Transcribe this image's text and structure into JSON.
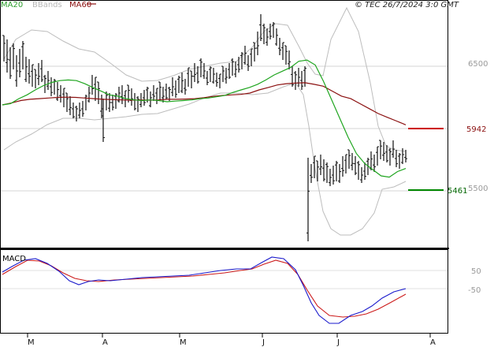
{
  "legend": [
    {
      "label": "MA20",
      "color": "#2e9e2e"
    },
    {
      "label": "BBands",
      "color": "#b8b8b8"
    },
    {
      "label": "MA60",
      "color": "#8b1010"
    }
  ],
  "copyright": "© TEC 26/7/2024 3:0 GMT",
  "macd_label": "MACD",
  "colors": {
    "ma20": "#1fa51f",
    "ma60": "#8b1010",
    "bbands": "#bdbdbd",
    "price": "#111111",
    "resistance": "#cc0000",
    "support": "#008800",
    "macd": "#1a1acc",
    "signal": "#cc1a1a",
    "grid": "#d4d4d4",
    "frame": "#000000"
  },
  "chart_data": [
    {
      "type": "line",
      "title": "",
      "x_ticks": [
        "M",
        "A",
        "M",
        "J",
        "J",
        "A"
      ],
      "y_ticks": [
        6500,
        6000,
        5500
      ],
      "y_tick_labels": [
        "6500",
        "",
        "5500"
      ],
      "ylim": [
        4980,
        6990
      ],
      "grid": true,
      "levels": [
        {
          "name": "resistance",
          "value": 5942,
          "label": "5942"
        },
        {
          "name": "support",
          "value": 5461,
          "label": "5461"
        }
      ],
      "series": [
        {
          "name": "MA20",
          "values": [
            6190,
            6200,
            6240,
            6270,
            6310,
            6345,
            6370,
            6385,
            6390,
            6385,
            6360,
            6330,
            6300,
            6270,
            6260,
            6240,
            6230,
            6225,
            6230,
            6225,
            6215,
            6220,
            6225,
            6230,
            6240,
            6245,
            6255,
            6265,
            6290,
            6310,
            6330,
            6355,
            6390,
            6430,
            6460,
            6490,
            6540,
            6550,
            6510,
            6380,
            6230,
            6080,
            5930,
            5800,
            5720,
            5670,
            5620,
            5610,
            5655,
            5680
          ]
        },
        {
          "name": "MA60",
          "values": [
            6190,
            6205,
            6225,
            6235,
            6240,
            6245,
            6250,
            6252,
            6250,
            6245,
            6240,
            6235,
            6232,
            6230,
            6228,
            6230,
            6228,
            6230,
            6235,
            6235,
            6237,
            6240,
            6248,
            6258,
            6265,
            6270,
            6274,
            6285,
            6310,
            6330,
            6350,
            6360,
            6365,
            6368,
            6355,
            6340,
            6300,
            6260,
            6240,
            6200,
            6160,
            6120,
            6090,
            6060,
            6030
          ]
        }
      ]
    },
    {
      "type": "line",
      "title": "",
      "yticks": [
        50,
        -50
      ],
      "ytick_labels": [
        "50",
        "-50"
      ],
      "series": [
        {
          "name": "MACD",
          "values": []
        },
        {
          "name": "Signal",
          "values": []
        }
      ]
    }
  ]
}
